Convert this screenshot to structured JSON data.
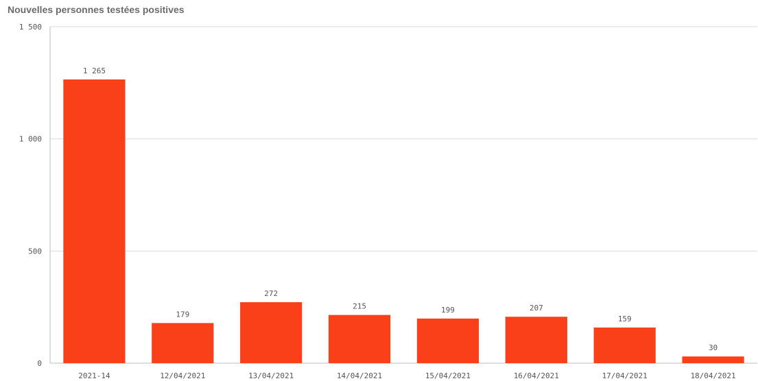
{
  "chart_data": {
    "type": "bar",
    "title": "Nouvelles personnes testées positives",
    "categories": [
      "2021-14",
      "12/04/2021",
      "13/04/2021",
      "14/04/2021",
      "15/04/2021",
      "16/04/2021",
      "17/04/2021",
      "18/04/2021"
    ],
    "values": [
      1265,
      179,
      272,
      215,
      199,
      207,
      159,
      30
    ],
    "value_labels": [
      "1 265",
      "179",
      "272",
      "215",
      "199",
      "207",
      "159",
      "30"
    ],
    "ylim": [
      0,
      1500
    ],
    "y_ticks": [
      0,
      500,
      1000,
      1500
    ],
    "y_tick_labels": [
      "0",
      "500",
      "1 000",
      "1 500"
    ],
    "xlabel": "",
    "ylabel": "",
    "grid": true,
    "legend": "none",
    "bar_color": "#f94019"
  }
}
